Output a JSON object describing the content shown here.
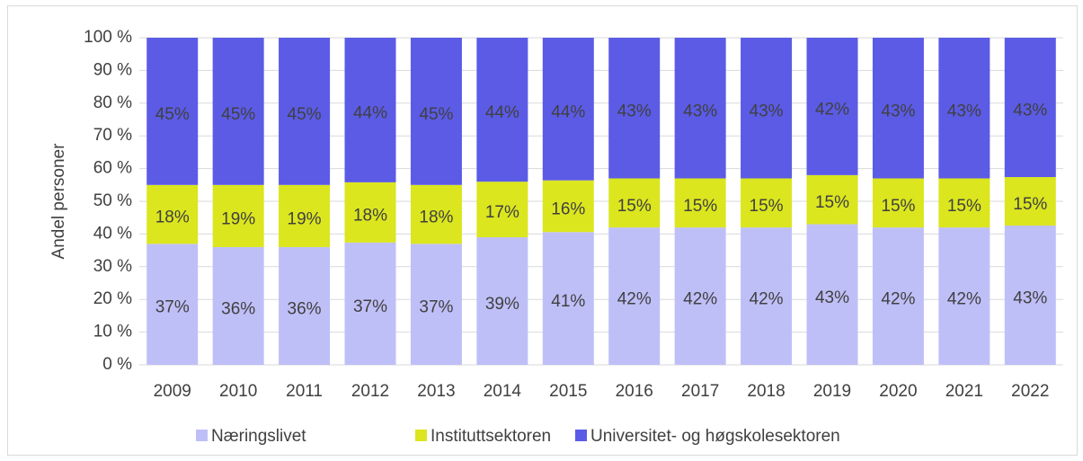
{
  "chart_data": {
    "type": "stacked_bar",
    "y_label": "Andel personer",
    "categories": [
      "2009",
      "2010",
      "2011",
      "2012",
      "2013",
      "2014",
      "2015",
      "2016",
      "2017",
      "2018",
      "2019",
      "2020",
      "2021",
      "2022"
    ],
    "series": [
      {
        "name": "Næringslivet",
        "color": "#bfbff8",
        "values": [
          37,
          36,
          36,
          37.4,
          37,
          39,
          40.6,
          42,
          42,
          42,
          43,
          42,
          42,
          42.6
        ],
        "value_labels": [
          "37%",
          "36%",
          "36%",
          "37%",
          "37%",
          "39%",
          "41%",
          "42%",
          "42%",
          "42%",
          "43%",
          "42%",
          "42%",
          "43%"
        ]
      },
      {
        "name": "Instituttsektoren",
        "color": "#dbe61e",
        "values": [
          18,
          19,
          19,
          18.4,
          18,
          17,
          15.8,
          15,
          15,
          15,
          15,
          15,
          15,
          14.8
        ],
        "value_labels": [
          "18%",
          "19%",
          "19%",
          "18%",
          "18%",
          "17%",
          "16%",
          "15%",
          "15%",
          "15%",
          "15%",
          "15%",
          "15%",
          "15%"
        ]
      },
      {
        "name": "Universitet- og høgskolesektoren",
        "color": "#5b5be6",
        "values": [
          45,
          45,
          45,
          44.2,
          45,
          44,
          43.6,
          43,
          43,
          43,
          42,
          43,
          43,
          42.6
        ],
        "value_labels": [
          "45%",
          "45%",
          "45%",
          "44%",
          "45%",
          "44%",
          "44%",
          "43%",
          "43%",
          "43%",
          "42%",
          "43%",
          "43%",
          "43%"
        ]
      }
    ],
    "ylim": [
      0,
      100
    ],
    "yticks": [
      {
        "value": 0,
        "label": "0 %"
      },
      {
        "value": 10,
        "label": "10 %"
      },
      {
        "value": 20,
        "label": "20 %"
      },
      {
        "value": 30,
        "label": "30 %"
      },
      {
        "value": 40,
        "label": "40 %"
      },
      {
        "value": 50,
        "label": "50 %"
      },
      {
        "value": 60,
        "label": "60 %"
      },
      {
        "value": 70,
        "label": "70 %"
      },
      {
        "value": 80,
        "label": "80 %"
      },
      {
        "value": 90,
        "label": "90 %"
      },
      {
        "value": 100,
        "label": "100 %"
      }
    ],
    "grid": true,
    "legend": "bottom"
  }
}
